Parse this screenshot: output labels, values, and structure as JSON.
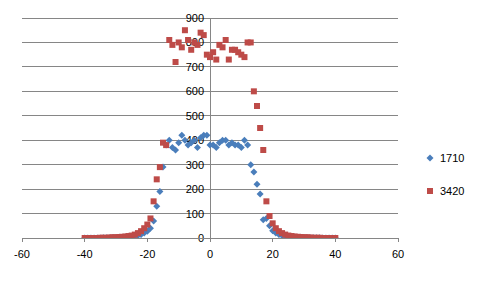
{
  "chart_data": {
    "type": "scatter",
    "x": [
      -40,
      -39,
      -38,
      -37,
      -36,
      -35,
      -34,
      -33,
      -32,
      -31,
      -30,
      -29,
      -28,
      -27,
      -26,
      -25,
      -24,
      -23,
      -22,
      -21,
      -20,
      -19,
      -18,
      -17,
      -16,
      -15,
      -14,
      -13,
      -12,
      -11,
      -10,
      -9,
      -8,
      -7,
      -6,
      -5,
      -4,
      -3,
      -2,
      -1,
      0,
      1,
      2,
      3,
      4,
      5,
      6,
      7,
      8,
      9,
      10,
      11,
      12,
      13,
      14,
      15,
      16,
      17,
      18,
      19,
      20,
      21,
      22,
      23,
      24,
      25,
      26,
      27,
      28,
      29,
      30,
      31,
      32,
      33,
      34,
      35,
      36,
      37,
      38,
      39,
      40
    ],
    "series": [
      {
        "name": "1710",
        "color": "#4a7ebb",
        "marker": "diamond",
        "values": [
          0,
          0,
          0,
          0,
          0,
          0,
          1,
          1,
          1,
          2,
          2,
          3,
          3,
          4,
          5,
          6,
          8,
          10,
          14,
          20,
          28,
          40,
          70,
          130,
          190,
          290,
          380,
          400,
          370,
          360,
          390,
          420,
          400,
          380,
          390,
          400,
          370,
          410,
          420,
          420,
          380,
          380,
          370,
          390,
          400,
          400,
          380,
          390,
          380,
          380,
          370,
          400,
          380,
          300,
          270,
          220,
          180,
          75,
          80,
          50,
          30,
          20,
          14,
          10,
          8,
          6,
          5,
          4,
          3,
          3,
          2,
          2,
          1,
          1,
          1,
          1,
          0,
          0,
          0,
          0,
          0
        ]
      },
      {
        "name": "3420",
        "color": "#be4b48",
        "marker": "square",
        "values": [
          0,
          0,
          0,
          0,
          0,
          1,
          1,
          1,
          2,
          3,
          3,
          4,
          5,
          6,
          8,
          10,
          14,
          20,
          28,
          40,
          55,
          80,
          150,
          240,
          290,
          390,
          380,
          810,
          790,
          720,
          800,
          780,
          850,
          810,
          770,
          800,
          790,
          840,
          830,
          750,
          740,
          760,
          730,
          790,
          780,
          810,
          730,
          770,
          770,
          760,
          750,
          740,
          800,
          800,
          600,
          540,
          450,
          360,
          150,
          90,
          60,
          40,
          28,
          20,
          14,
          10,
          8,
          6,
          5,
          4,
          3,
          3,
          2,
          1,
          1,
          1,
          0,
          0,
          0,
          0,
          0
        ]
      }
    ],
    "xlim": [
      -60,
      60
    ],
    "xticks": [
      -60,
      -40,
      -20,
      0,
      20,
      40,
      60
    ],
    "ylim": [
      0,
      900
    ],
    "yticks": [
      0,
      100,
      200,
      300,
      400,
      500,
      600,
      700,
      800,
      900
    ],
    "grid": true,
    "legend": "right"
  }
}
